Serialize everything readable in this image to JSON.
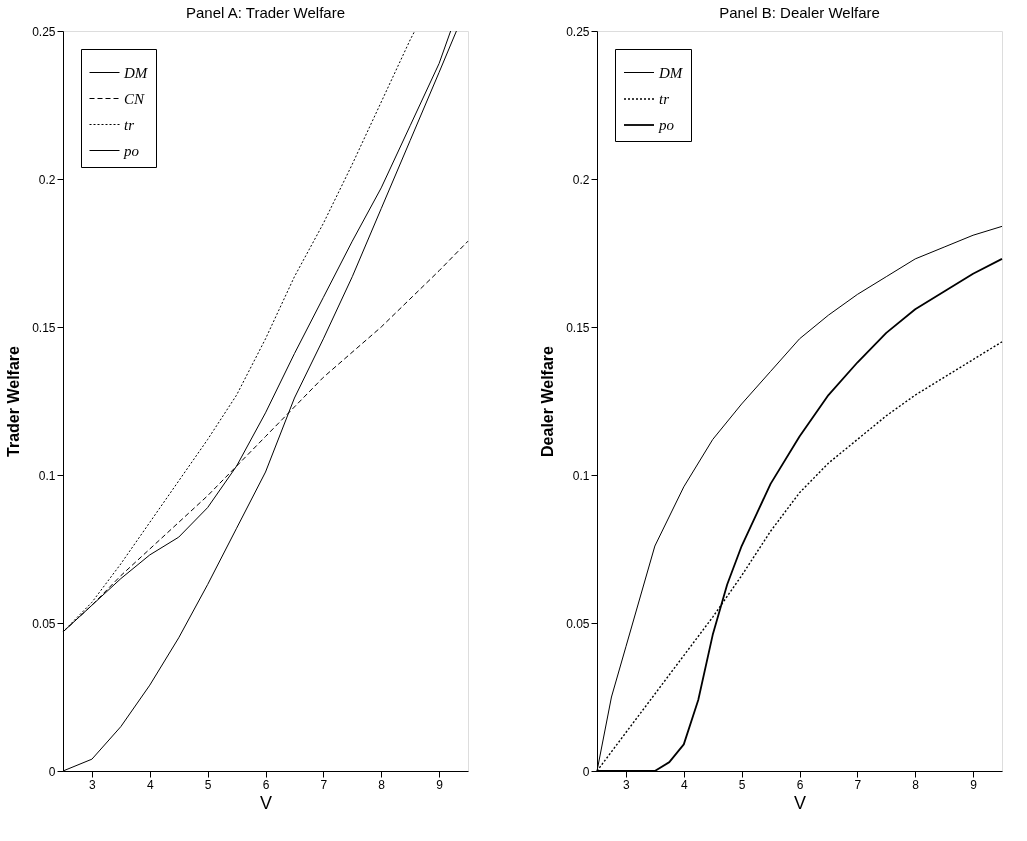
{
  "chart_data": [
    {
      "type": "line",
      "title": "Panel A: Trader Welfare",
      "xlabel": "V",
      "ylabel": "Trader Welfare",
      "xlim": [
        2.5,
        9.5
      ],
      "xticks": [
        3,
        4,
        5,
        6,
        7,
        8,
        9
      ],
      "ylim": [
        0,
        0.25
      ],
      "yticks": [
        0,
        0.05,
        0.1,
        0.15,
        0.2,
        0.25
      ],
      "legend": "top left",
      "grid": false,
      "series": [
        {
          "name": "DM",
          "color": "#000000",
          "line_style": "solid",
          "x": [
            2.5,
            3,
            3.5,
            4,
            4.5,
            5,
            5.5,
            6,
            6.5,
            7,
            7.5,
            8,
            8.5,
            9,
            9.3
          ],
          "values": [
            0,
            0.004,
            0.015,
            0.029,
            0.045,
            0.063,
            0.082,
            0.101,
            0.126,
            0.146,
            0.167,
            0.19,
            0.213,
            0.236,
            0.25
          ]
        },
        {
          "name": "CN",
          "color": "#000000",
          "line_style": "dashed",
          "x": [
            2.5,
            3,
            3.5,
            4,
            5,
            6,
            7,
            8,
            9,
            9.5
          ],
          "values": [
            0.047,
            0.056,
            0.066,
            0.075,
            0.093,
            0.113,
            0.133,
            0.15,
            0.169,
            0.179
          ]
        },
        {
          "name": "tr",
          "color": "#000000",
          "line_style": "dotted",
          "x": [
            2.5,
            3,
            3.5,
            4,
            4.5,
            5,
            5.5,
            6,
            6.5,
            7,
            7.5,
            8,
            8.5,
            8.58
          ],
          "values": [
            0.047,
            0.057,
            0.07,
            0.084,
            0.098,
            0.112,
            0.127,
            0.146,
            0.167,
            0.185,
            0.205,
            0.226,
            0.247,
            0.25
          ]
        },
        {
          "name": "po",
          "color": "#000000",
          "line_style": "solid",
          "x": [
            2.5,
            3,
            3.5,
            4,
            4.5,
            5,
            5.5,
            6,
            6.5,
            7,
            7.5,
            8,
            8.5,
            9,
            9.2
          ],
          "values": [
            0.047,
            0.056,
            0.065,
            0.073,
            0.079,
            0.089,
            0.103,
            0.121,
            0.141,
            0.16,
            0.179,
            0.197,
            0.218,
            0.239,
            0.25
          ]
        }
      ]
    },
    {
      "type": "line",
      "title": "Panel B: Dealer Welfare",
      "xlabel": "V",
      "ylabel": "Dealer Welfare",
      "xlim": [
        2.5,
        9.5
      ],
      "xticks": [
        3,
        4,
        5,
        6,
        7,
        8,
        9
      ],
      "ylim": [
        0,
        0.25
      ],
      "yticks": [
        0,
        0.05,
        0.1,
        0.15,
        0.2,
        0.25
      ],
      "legend": "top left",
      "grid": false,
      "series": [
        {
          "name": "DM",
          "color": "#000000",
          "line_style": "solid",
          "x": [
            2.5,
            2.75,
            3,
            3.5,
            4,
            4.5,
            5,
            5.5,
            6,
            6.5,
            7,
            7.5,
            8,
            8.5,
            9,
            9.5
          ],
          "values": [
            0,
            0.025,
            0.042,
            0.076,
            0.096,
            0.112,
            0.124,
            0.135,
            0.146,
            0.154,
            0.161,
            0.167,
            0.173,
            0.177,
            0.181,
            0.184
          ]
        },
        {
          "name": "tr",
          "color": "#000000",
          "line_style": "dotted",
          "x": [
            2.5,
            3,
            3.5,
            4,
            4.5,
            5,
            5.5,
            6,
            6.5,
            7,
            7.5,
            8,
            8.5,
            9,
            9.5
          ],
          "values": [
            0,
            0.013,
            0.026,
            0.039,
            0.052,
            0.066,
            0.081,
            0.094,
            0.104,
            0.112,
            0.12,
            0.127,
            0.133,
            0.139,
            0.145
          ]
        },
        {
          "name": "po",
          "color": "#000000",
          "line_style": "solid",
          "x": [
            2.5,
            3,
            3.5,
            3.75,
            4,
            4.25,
            4.5,
            4.75,
            5,
            5.5,
            6,
            6.5,
            7,
            7.5,
            8,
            8.5,
            9,
            9.5
          ],
          "values": [
            0,
            0,
            0,
            0.003,
            0.009,
            0.024,
            0.046,
            0.063,
            0.076,
            0.097,
            0.113,
            0.127,
            0.138,
            0.148,
            0.156,
            0.162,
            0.168,
            0.173
          ]
        }
      ]
    }
  ]
}
